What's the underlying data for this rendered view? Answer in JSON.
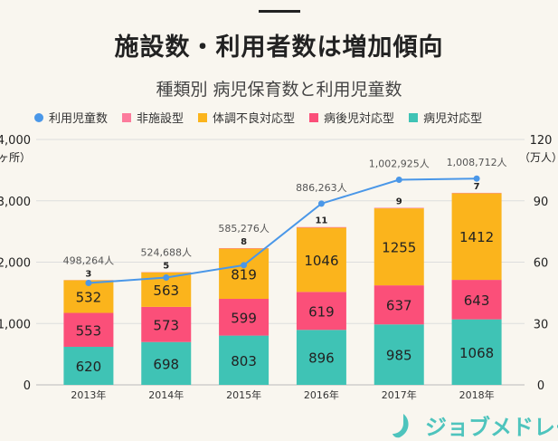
{
  "title": "施設数・利用者数は増加傾向",
  "subtitle": "種類別 病児保育数と利用児童数",
  "logo_text": "ジョブメドレー",
  "colors": {
    "users": "#4a97e8",
    "non_facility": "#fc7b9c",
    "condition": "#fbb41c",
    "post_illness": "#fb4f79",
    "illness": "#3fc3b5",
    "background": "#f9f6ef"
  },
  "chart_data": {
    "type": "bar",
    "stacked": true,
    "categories": [
      "2013年",
      "2014年",
      "2015年",
      "2016年",
      "2017年",
      "2018年"
    ],
    "series": [
      {
        "name": "病児対応型",
        "key": "illness",
        "values": [
          620,
          698,
          803,
          896,
          985,
          1068
        ]
      },
      {
        "name": "病後児対応型",
        "key": "post_illness",
        "values": [
          553,
          573,
          599,
          619,
          637,
          643
        ]
      },
      {
        "name": "体調不良対応型",
        "key": "condition",
        "values": [
          532,
          563,
          819,
          1046,
          1255,
          1412
        ]
      },
      {
        "name": "非施設型",
        "key": "non_facility",
        "values": [
          3,
          5,
          8,
          11,
          9,
          7
        ]
      }
    ],
    "line": {
      "name": "利用児童数",
      "key": "users",
      "values": [
        498264,
        524688,
        585276,
        886263,
        1002925,
        1008712
      ],
      "labels": [
        "498,264人",
        "524,688人",
        "585,276人",
        "886,263人",
        "1,002,925人",
        "1,008,712人"
      ]
    },
    "legend_order": [
      "利用児童数",
      "非施設型",
      "体調不良対応型",
      "病後児対応型",
      "病児対応型"
    ],
    "legend_placement": "top",
    "y_left": {
      "unit": "（ヶ所）",
      "range": [
        0,
        4000
      ],
      "ticks": [
        "0",
        "1,000",
        "2,000",
        "3,000",
        "4,000"
      ]
    },
    "y_right": {
      "unit": "（万人）",
      "range": [
        0,
        120
      ],
      "ticks": [
        "0",
        "30",
        "60",
        "90",
        "120"
      ]
    },
    "grid": true
  }
}
